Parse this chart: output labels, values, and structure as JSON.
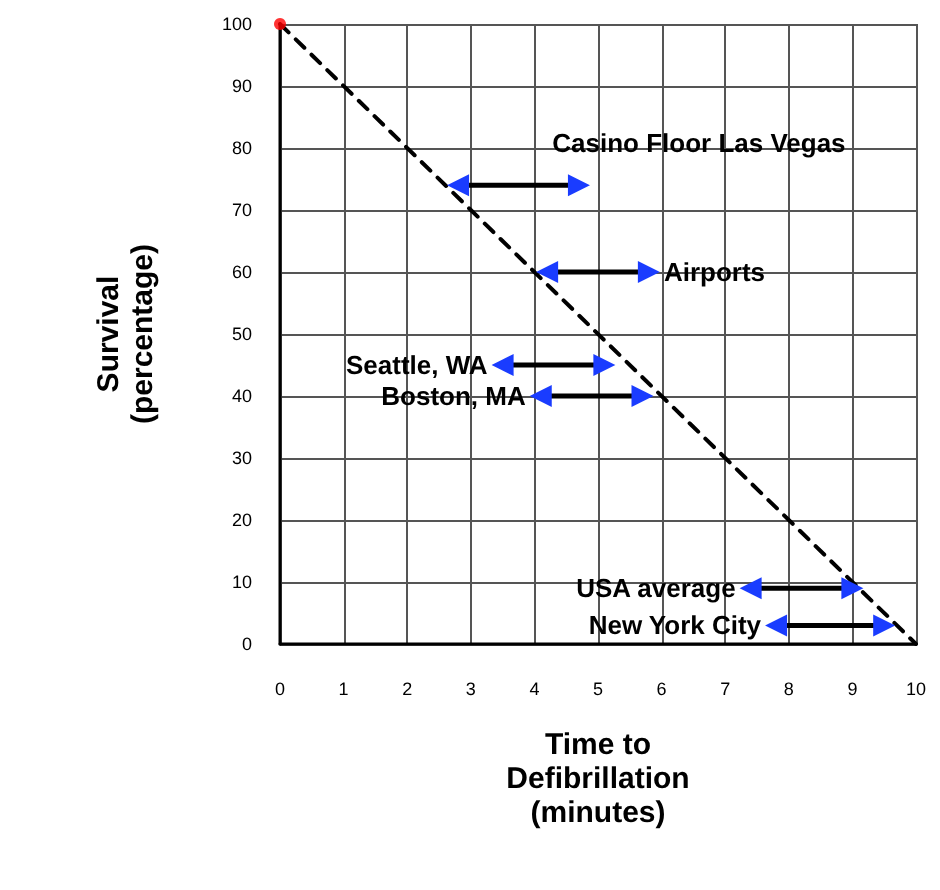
{
  "chart_data": {
    "type": "line",
    "xlabel": "Time to\nDefibrillation\n(minutes)",
    "ylabel": "Survival\n(percentage)",
    "xlim": [
      0,
      10
    ],
    "xticks": [
      0,
      1,
      2,
      3,
      4,
      5,
      6,
      7,
      8,
      9,
      10
    ],
    "ylim": [
      0,
      100
    ],
    "yticks": [
      0,
      10,
      20,
      30,
      40,
      50,
      60,
      70,
      80,
      90,
      100
    ],
    "grid": true,
    "series": [
      {
        "color": "#000000",
        "x": [
          0,
          10
        ],
        "values": [
          100,
          0
        ],
        "line_style": "dashed",
        "marker": "none"
      },
      {
        "type": "scatter",
        "color": "#ff0000",
        "x": [
          0
        ],
        "values": [
          100
        ],
        "marker": "circle"
      },
      {
        "name": "Casino Floor Las Vegas",
        "color": "#000000",
        "x": [
          2.8,
          4.7
        ],
        "values": [
          74,
          74
        ],
        "marker": "triangle"
      },
      {
        "name": "Airports",
        "color": "#000000",
        "x": [
          4.2,
          5.8
        ],
        "values": [
          60,
          60
        ],
        "marker": "triangle"
      },
      {
        "name": "Seattle, WA",
        "color": "#000000",
        "x": [
          3.5,
          5.1
        ],
        "values": [
          45,
          45
        ],
        "marker": "triangle"
      },
      {
        "name": "Boston, MA",
        "color": "#000000",
        "x": [
          4.1,
          5.7
        ],
        "values": [
          40,
          40
        ],
        "marker": "triangle"
      },
      {
        "name": "USA average",
        "color": "#000000",
        "x": [
          7.4,
          9
        ],
        "values": [
          9,
          9
        ],
        "marker": "triangle"
      },
      {
        "name": "New York City",
        "color": "#000000",
        "x": [
          7.8,
          9.5
        ],
        "values": [
          3,
          3
        ],
        "marker": "triangle"
      }
    ]
  }
}
